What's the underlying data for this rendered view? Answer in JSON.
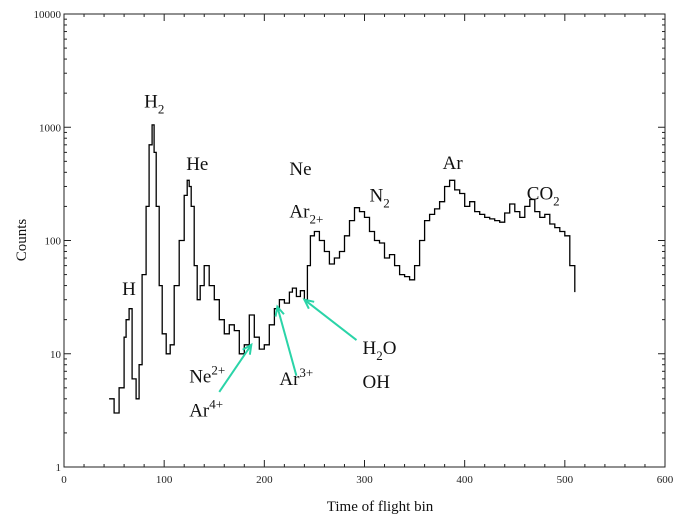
{
  "chart_data": {
    "type": "line",
    "title": "",
    "xlabel": "Time of flight  bin",
    "ylabel": "Counts",
    "xlim": [
      0,
      600
    ],
    "ylim": [
      1,
      10000
    ],
    "y_scale": "log",
    "grid": false,
    "x_ticks": [
      "0",
      "100",
      "200",
      "300",
      "400",
      "500",
      "600"
    ],
    "y_ticks": [
      "1",
      "10",
      "100",
      "1000",
      "10000"
    ],
    "series": [
      {
        "style": "step",
        "color": "#000000",
        "x": [
          45,
          50,
          55,
          60,
          62,
          65,
          68,
          72,
          75,
          78,
          82,
          85,
          88,
          90,
          92,
          95,
          98,
          102,
          106,
          110,
          115,
          120,
          123,
          125,
          127,
          130,
          133,
          136,
          140,
          145,
          150,
          155,
          160,
          165,
          170,
          175,
          180,
          185,
          190,
          195,
          200,
          205,
          210,
          215,
          220,
          225,
          228,
          232,
          236,
          240,
          243,
          246,
          250,
          255,
          260,
          265,
          270,
          275,
          280,
          285,
          290,
          295,
          300,
          305,
          310,
          315,
          320,
          325,
          330,
          335,
          340,
          345,
          350,
          355,
          360,
          365,
          370,
          375,
          380,
          385,
          390,
          395,
          400,
          405,
          410,
          415,
          420,
          425,
          430,
          435,
          440,
          445,
          450,
          455,
          460,
          465,
          470,
          475,
          480,
          485,
          490,
          495,
          500,
          505,
          510
        ],
        "y": [
          4,
          3,
          5,
          14,
          20,
          25,
          6,
          4,
          8,
          50,
          200,
          700,
          1050,
          600,
          200,
          40,
          15,
          10,
          12,
          40,
          100,
          250,
          340,
          300,
          200,
          60,
          30,
          40,
          60,
          40,
          30,
          20,
          15,
          18,
          16,
          10,
          12,
          22,
          14,
          11,
          12,
          18,
          25,
          30,
          28,
          35,
          38,
          32,
          36,
          30,
          60,
          110,
          120,
          100,
          80,
          62,
          70,
          80,
          110,
          150,
          195,
          180,
          160,
          120,
          100,
          95,
          70,
          75,
          60,
          50,
          48,
          45,
          60,
          100,
          150,
          170,
          190,
          220,
          300,
          340,
          280,
          260,
          200,
          220,
          180,
          170,
          160,
          155,
          150,
          145,
          175,
          210,
          180,
          160,
          200,
          230,
          180,
          160,
          170,
          140,
          130,
          120,
          110,
          60,
          35
        ]
      }
    ],
    "annotations": [
      {
        "text": "H",
        "x": 58,
        "y": 33
      },
      {
        "text": "H",
        "sub": "2",
        "x": 80,
        "y": 1500
      },
      {
        "text": "He",
        "x": 122,
        "y": 420
      },
      {
        "text": "Ne",
        "x": 225,
        "y": 380
      },
      {
        "text": "Ar",
        "sub": "2+",
        "x": 225,
        "y": 160
      },
      {
        "text": "N",
        "sub": "2",
        "x": 305,
        "y": 220
      },
      {
        "text": "Ar",
        "x": 378,
        "y": 430
      },
      {
        "text": "CO",
        "sub": "2",
        "x": 462,
        "y": 230
      },
      {
        "text": "Ne",
        "sup": "2+",
        "x": 125,
        "y": 5.6
      },
      {
        "text": "Ar",
        "sup": "4+",
        "x": 125,
        "y": 2.8
      },
      {
        "text": "Ar",
        "sup": "3+",
        "x": 215,
        "y": 5.3
      },
      {
        "text": "H",
        "sub": "2",
        "tail": "O",
        "x": 298,
        "y": 10
      },
      {
        "text": "OH",
        "x": 298,
        "y": 5
      }
    ],
    "arrows": [
      {
        "from": [
          155,
          4.6
        ],
        "to": [
          187,
          12
        ]
      },
      {
        "from": [
          232,
          6.4
        ],
        "to": [
          213,
          26
        ]
      },
      {
        "from": [
          292,
          13.2
        ],
        "to": [
          240,
          30
        ]
      }
    ],
    "arrow_color": "#2ad4a8"
  }
}
